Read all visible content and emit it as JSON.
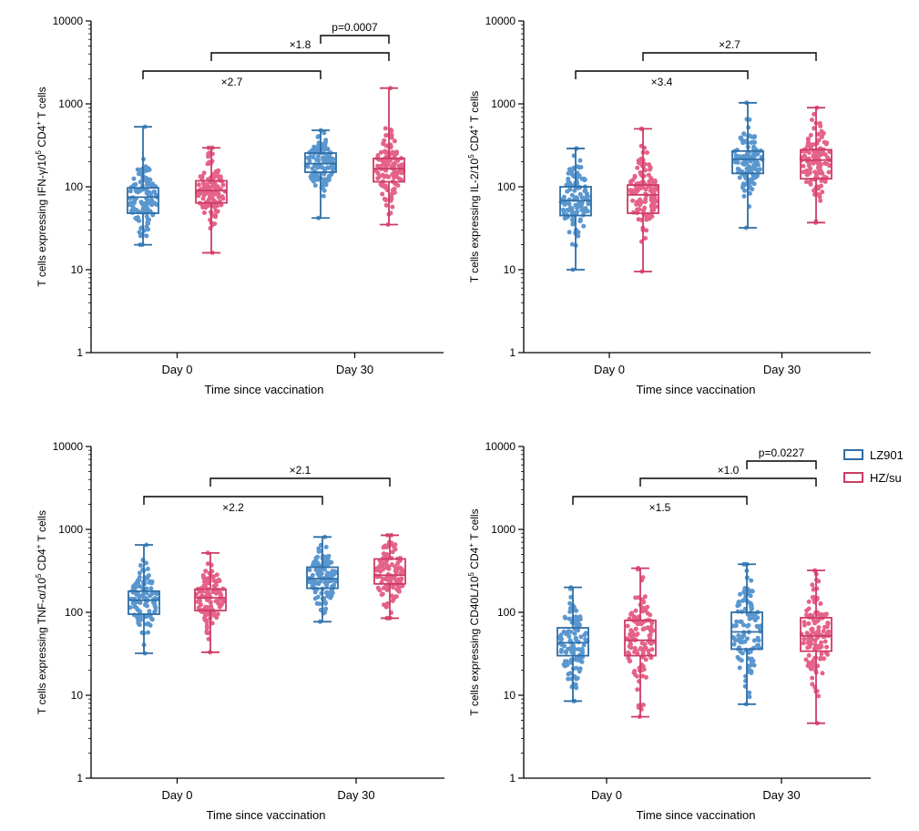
{
  "colors": {
    "LZ901": "#2e6ea6",
    "LZ901_dot": "#5b97cf",
    "HZsu": "#cc3c64",
    "HZsu_dot": "#e5628a",
    "axis": "#000000"
  },
  "legend": {
    "items": [
      {
        "key": "LZ901",
        "label": "LZ901"
      },
      {
        "key": "HZsu",
        "label": "HZ/su"
      }
    ]
  },
  "chart_data": [
    {
      "type": "box",
      "id": "ifn",
      "ylabel_parts": [
        "T cells expressing IFN-γ/10",
        "5",
        " CD4",
        "+",
        " T cells"
      ],
      "xlabel": "Time since vaccination",
      "categories": [
        "Day 0",
        "Day 30"
      ],
      "yscale": "log",
      "ylim": [
        1,
        10000
      ],
      "yticks": [
        1,
        10,
        100,
        1000,
        10000
      ],
      "ytick_labels": [
        "1",
        "10",
        "100",
        "1000",
        "10000"
      ],
      "series": [
        {
          "name": "LZ901",
          "boxes": [
            {
              "min": 20,
              "q1": 48,
              "median": 75,
              "q3": 97,
              "max": 530
            },
            {
              "min": 42,
              "q1": 150,
              "median": 190,
              "q3": 255,
              "max": 480
            }
          ]
        },
        {
          "name": "HZ/su",
          "boxes": [
            {
              "min": 16,
              "q1": 64,
              "median": 90,
              "q3": 118,
              "max": 295
            },
            {
              "min": 35,
              "q1": 115,
              "median": 165,
              "q3": 220,
              "max": 1550
            }
          ]
        }
      ],
      "annotations": [
        {
          "text": "×2.7",
          "level": 0,
          "left": [
            0,
            0
          ],
          "right": [
            1,
            0
          ]
        },
        {
          "text": "×1.8",
          "level": 1,
          "left": [
            0,
            1
          ],
          "right": [
            1,
            1
          ]
        },
        {
          "text": "p=0.0007",
          "level": 2,
          "left": [
            1,
            0
          ],
          "right": [
            1,
            1
          ]
        }
      ]
    },
    {
      "type": "box",
      "id": "il2",
      "ylabel_parts": [
        "T cells expressing IL-2/10",
        "5",
        " CD4",
        "+",
        " T cells"
      ],
      "xlabel": "Time since vaccination",
      "categories": [
        "Day 0",
        "Day 30"
      ],
      "yscale": "log",
      "ylim": [
        1,
        10000
      ],
      "yticks": [
        1,
        10,
        100,
        1000,
        10000
      ],
      "ytick_labels": [
        "1",
        "10",
        "100",
        "1000",
        "10000"
      ],
      "series": [
        {
          "name": "LZ901",
          "boxes": [
            {
              "min": 10,
              "q1": 45,
              "median": 68,
              "q3": 100,
              "max": 290
            },
            {
              "min": 32,
              "q1": 145,
              "median": 215,
              "q3": 270,
              "max": 1030
            }
          ]
        },
        {
          "name": "HZ/su",
          "boxes": [
            {
              "min": 9.5,
              "q1": 48,
              "median": 80,
              "q3": 105,
              "max": 500
            },
            {
              "min": 37,
              "q1": 125,
              "median": 210,
              "q3": 280,
              "max": 900
            }
          ]
        }
      ],
      "annotations": [
        {
          "text": "×3.4",
          "level": 0,
          "left": [
            0,
            0
          ],
          "right": [
            1,
            0
          ]
        },
        {
          "text": "×2.7",
          "level": 1,
          "left": [
            0,
            1
          ],
          "right": [
            1,
            1
          ]
        }
      ]
    },
    {
      "type": "box",
      "id": "tnf",
      "ylabel_parts": [
        "T cells expressing TNF-α/10",
        "5",
        " CD4",
        "+",
        " T cells"
      ],
      "xlabel": "Time since vaccination",
      "categories": [
        "Day 0",
        "Day 30"
      ],
      "yscale": "log",
      "ylim": [
        1,
        10000
      ],
      "yticks": [
        1,
        10,
        100,
        1000,
        10000
      ],
      "ytick_labels": [
        "1",
        "10",
        "100",
        "1000",
        "10000"
      ],
      "series": [
        {
          "name": "LZ901",
          "boxes": [
            {
              "min": 32,
              "q1": 95,
              "median": 140,
              "q3": 180,
              "max": 650
            },
            {
              "min": 77,
              "q1": 195,
              "median": 255,
              "q3": 350,
              "max": 810
            }
          ]
        },
        {
          "name": "HZ/su",
          "boxes": [
            {
              "min": 33,
              "q1": 105,
              "median": 150,
              "q3": 190,
              "max": 520
            },
            {
              "min": 85,
              "q1": 220,
              "median": 280,
              "q3": 440,
              "max": 850
            }
          ]
        }
      ],
      "annotations": [
        {
          "text": "×2.2",
          "level": 0,
          "left": [
            0,
            0
          ],
          "right": [
            1,
            0
          ]
        },
        {
          "text": "×2.1",
          "level": 1,
          "left": [
            0,
            1
          ],
          "right": [
            1,
            1
          ]
        }
      ]
    },
    {
      "type": "box",
      "id": "cd40l",
      "ylabel_parts": [
        "T cells expressing CD40L/10",
        "5",
        " CD4",
        "+",
        " T cells"
      ],
      "xlabel": "Time since vaccination",
      "categories": [
        "Day 0",
        "Day 30"
      ],
      "yscale": "log",
      "ylim": [
        1,
        10000
      ],
      "yticks": [
        1,
        10,
        100,
        1000,
        10000
      ],
      "ytick_labels": [
        "1",
        "10",
        "100",
        "1000",
        "10000"
      ],
      "series": [
        {
          "name": "LZ901",
          "boxes": [
            {
              "min": 8.5,
              "q1": 30,
              "median": 43,
              "q3": 65,
              "max": 200
            },
            {
              "min": 7.8,
              "q1": 36,
              "median": 58,
              "q3": 100,
              "max": 380
            }
          ]
        },
        {
          "name": "HZ/su",
          "boxes": [
            {
              "min": 5.5,
              "q1": 30,
              "median": 46,
              "q3": 80,
              "max": 340
            },
            {
              "min": 4.6,
              "q1": 34,
              "median": 52,
              "q3": 86,
              "max": 320
            }
          ]
        }
      ],
      "annotations": [
        {
          "text": "×1.5",
          "level": 0,
          "left": [
            0,
            0
          ],
          "right": [
            1,
            0
          ]
        },
        {
          "text": "×1.0",
          "level": 1,
          "left": [
            0,
            1
          ],
          "right": [
            1,
            1
          ]
        },
        {
          "text": "p=0.0227",
          "level": 2,
          "left": [
            1,
            0
          ],
          "right": [
            1,
            1
          ]
        }
      ]
    }
  ]
}
